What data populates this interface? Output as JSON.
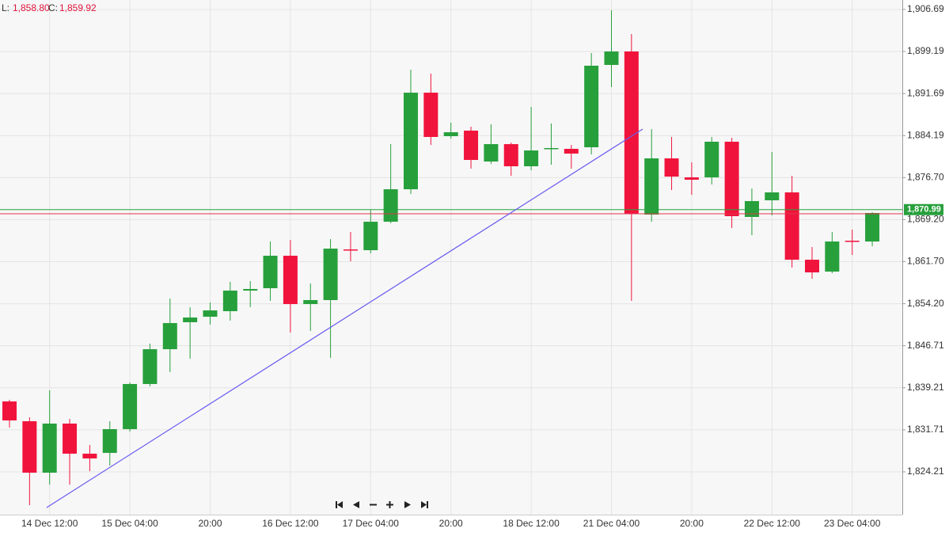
{
  "header": {
    "low_label": "L:",
    "low": "1,858.80",
    "close_label": "C:",
    "close": "1,859.92"
  },
  "chart_data": {
    "type": "candlestick",
    "up_color": "#27a03c",
    "down_color": "#f0143c",
    "grid": true,
    "categories": [
      null,
      null,
      "14 Dec 12:00",
      null,
      null,
      null,
      "15 Dec 04:00",
      null,
      null,
      null,
      "20:00",
      null,
      null,
      null,
      "16 Dec 12:00",
      null,
      null,
      null,
      "17 Dec 04:00",
      null,
      null,
      null,
      "20:00",
      null,
      null,
      null,
      "18 Dec 12:00",
      null,
      null,
      null,
      "21 Dec 04:00",
      null,
      null,
      null,
      "20:00",
      null,
      null,
      null,
      "22 Dec 12:00",
      null,
      null,
      null,
      "23 Dec 04:00",
      null
    ],
    "open": [
      1836.77,
      1833.24,
      1824.06,
      1832.82,
      1827.45,
      1827.59,
      1831.83,
      1839.88,
      1846.09,
      1850.9,
      1851.88,
      1852.87,
      1856.54,
      1856.97,
      1862.76,
      1854.14,
      1854.85,
      1863.89,
      1863.75,
      1868.83,
      1874.62,
      1891.85,
      1884.09,
      1885.08,
      1879.57,
      1882.67,
      1878.72,
      1881.83,
      1881.83,
      1882.11,
      1896.8,
      1899.2,
      1870.1,
      1880.13,
      1876.74,
      1876.74,
      1883.1,
      1869.68,
      1872.65,
      1874.06,
      1862.05,
      1859.93,
      1865.44,
      1865.3
    ],
    "high": [
      1837.05,
      1833.95,
      1838.75,
      1833.66,
      1829.0,
      1833.24,
      1840.16,
      1847.08,
      1855.13,
      1853.58,
      1854.43,
      1858.1,
      1858.24,
      1865.3,
      1865.58,
      1857.82,
      1865.73,
      1867.0,
      1870.95,
      1882.67,
      1895.95,
      1895.24,
      1886.49,
      1885.78,
      1886.21,
      1882.96,
      1889.31,
      1886.35,
      1882.53,
      1898.92,
      1906.54,
      1902.31,
      1885.36,
      1883.95,
      1879.43,
      1883.95,
      1883.8,
      1874.76,
      1881.26,
      1877.02,
      1864.31,
      1867.0,
      1867.42,
      1870.53
    ],
    "low": [
      1832.11,
      1818.27,
      1821.94,
      1821.94,
      1824.34,
      1825.33,
      1831.4,
      1839.45,
      1842.0,
      1844.4,
      1850.47,
      1851.18,
      1853.58,
      1854.71,
      1849.06,
      1849.34,
      1844.54,
      1861.77,
      1863.18,
      1868.55,
      1873.78,
      1882.53,
      1883.66,
      1878.3,
      1879.14,
      1877.02,
      1878.01,
      1879.0,
      1878.3,
      1880.84,
      1892.84,
      1854.71,
      1868.83,
      1874.48,
      1873.63,
      1875.47,
      1867.7,
      1866.43,
      1869.96,
      1860.64,
      1858.66,
      1859.65,
      1862.9,
      1864.45
    ],
    "close": [
      1833.38,
      1824.06,
      1832.82,
      1827.45,
      1826.6,
      1831.83,
      1839.88,
      1846.09,
      1850.75,
      1851.74,
      1853.01,
      1856.54,
      1856.83,
      1862.76,
      1854.14,
      1854.85,
      1864.03,
      1863.75,
      1868.83,
      1874.62,
      1891.85,
      1883.95,
      1884.79,
      1879.85,
      1882.67,
      1878.72,
      1881.54,
      1881.97,
      1880.98,
      1896.66,
      1899.2,
      1870.25,
      1880.13,
      1876.88,
      1876.32,
      1883.1,
      1869.82,
      1872.51,
      1874.06,
      1862.05,
      1859.79,
      1865.3,
      1865.3,
      1870.39
    ],
    "ylim": [
      1816.58,
      1908.38
    ],
    "yticks": [
      {
        "value": 1906.69,
        "label": "1,906.69"
      },
      {
        "value": 1899.19,
        "label": "1,899.19"
      },
      {
        "value": 1891.69,
        "label": "1,891.69"
      },
      {
        "value": 1884.19,
        "label": "1,884.19"
      },
      {
        "value": 1876.7,
        "label": "1,876.70"
      },
      {
        "value": 1869.2,
        "label": "1,869.20"
      },
      {
        "value": 1861.7,
        "label": "1,861.70"
      },
      {
        "value": 1854.2,
        "label": "1,854.20"
      },
      {
        "value": 1846.71,
        "label": "1,846.71"
      },
      {
        "value": 1839.21,
        "label": "1,839.21"
      },
      {
        "value": 1831.71,
        "label": "1,831.71"
      },
      {
        "value": 1824.21,
        "label": "1,824.21"
      }
    ],
    "price_line": {
      "value": 1870.99,
      "label": "1,870.99",
      "color": "#27a03c"
    },
    "ask_line": {
      "value": 1870.25,
      "color": "#e0334d"
    },
    "trendline": {
      "x": [
        1.85,
        31.56
      ],
      "y": [
        1817.84,
        1885.36
      ],
      "color": "#6a5cf0"
    }
  }
}
